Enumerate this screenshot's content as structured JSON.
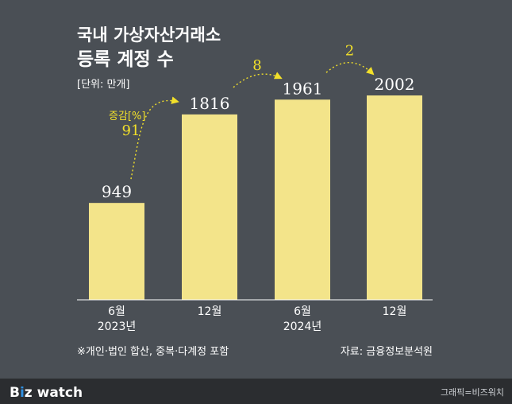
{
  "header": {
    "title_line1": "국내 가상자산거래소",
    "title_line2": "등록 계정 수",
    "unit": "[단위: 만개]"
  },
  "change_caption": "증감[%]",
  "notes": {
    "left": "※개인·법인 합산, 중복·다계정 포함",
    "right": "자료: 금융정보분석원"
  },
  "footer": {
    "brand_bold": "B",
    "brand_i": "i",
    "brand_z": "z",
    "brand_rest": " watch",
    "credit": "그래픽=비즈워치"
  },
  "colors": {
    "background": "#4a4f55",
    "bar": "#f3e48a",
    "accent": "#f2e02a",
    "text": "#ffffff",
    "footer_bg": "#2b2d30"
  },
  "chart_data": {
    "type": "bar",
    "categories": [
      [
        "6월",
        "2023년"
      ],
      [
        "12월"
      ],
      [
        "6월",
        "2024년"
      ],
      [
        "12월"
      ]
    ],
    "values": [
      949,
      1816,
      1961,
      2002
    ],
    "changes_percent": [
      91,
      8,
      2
    ],
    "title": "국내 가상자산거래소 등록 계정 수",
    "ylabel": "",
    "ylim": [
      0,
      2200
    ],
    "grid": false
  }
}
